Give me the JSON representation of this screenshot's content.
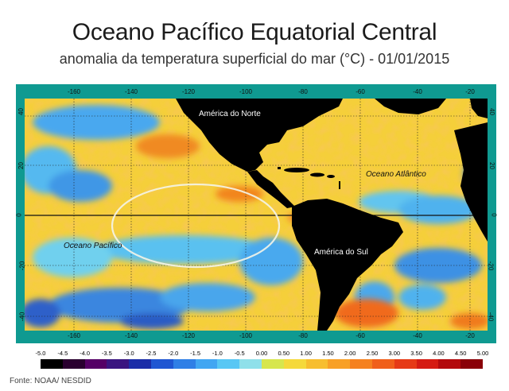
{
  "title": "Oceano Pacífico Equatorial Central",
  "subtitle": "anomalia da temperatura superficial do mar (°C) - 01/01/2015",
  "map": {
    "lon_labels": [
      "-160",
      "-140",
      "-120",
      "-100",
      "-80",
      "-60",
      "-40",
      "-20"
    ],
    "lat_labels_left": [
      "40",
      "20",
      "0",
      "-20",
      "-40"
    ],
    "lat_labels_right": [
      "40",
      "20",
      "0",
      "-20",
      "-40"
    ],
    "regions": {
      "north_america": "América do Norte",
      "south_america": "América do Sul",
      "atlantic": "Oceano Atlântico",
      "pacific": "Oceano Pacífico"
    },
    "highlight": "equatorial central Pacific ellipse",
    "colors": {
      "land": "#000000",
      "grid": "#222222",
      "frame": "#0f9a91",
      "highlight": "#f4f4e8"
    }
  },
  "colorbar": {
    "ticks": [
      "-5.0",
      "-4.5",
      "-4.0",
      "-3.5",
      "-3.0",
      "-2.5",
      "-2.0",
      "-1.5",
      "-1.0",
      "-0.5",
      "0.00",
      "0.50",
      "1.00",
      "1.50",
      "2.00",
      "2.50",
      "3.00",
      "3.50",
      "4.00",
      "4.50",
      "5.00"
    ],
    "colors": [
      "#000000",
      "#2a0030",
      "#550066",
      "#3a1580",
      "#1b2da8",
      "#1f56d2",
      "#2f7fe6",
      "#41a6f2",
      "#58c7f4",
      "#8fe0ea",
      "#d7e64d",
      "#f5d93b",
      "#f7be2f",
      "#f8a026",
      "#f5811f",
      "#f05f1a",
      "#e63a16",
      "#d51b12",
      "#b30a0d",
      "#8a0008"
    ]
  },
  "source": "Fonte: NOAA/ NESDID"
}
